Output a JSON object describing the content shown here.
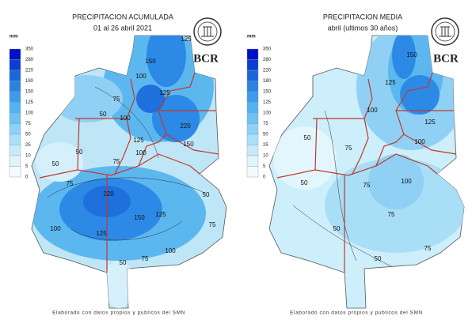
{
  "panels": [
    {
      "title": "PRECIPITACION ACUMULADA",
      "subtitle": "01 al 26 abril 2021",
      "legend": {
        "unit": "mm",
        "labels": [
          "350",
          "280",
          "220",
          "180",
          "150",
          "125",
          "100",
          "75",
          "50",
          "25",
          "10",
          "5",
          "0"
        ]
      },
      "logo": "BCR",
      "contour_labels": [
        "125",
        "150",
        "100",
        "50",
        "75",
        "100",
        "125",
        "220",
        "150",
        "125",
        "100",
        "75",
        "50",
        "50",
        "75",
        "220",
        "150",
        "125",
        "125",
        "100",
        "50",
        "75",
        "100",
        "50",
        "75"
      ],
      "footer": "Elaborado con datos propios y publicos del SMN"
    },
    {
      "title": "PRECIPITACION MEDIA",
      "subtitle": "abril (ultimos 30 años)",
      "legend": {
        "unit": "mm",
        "labels": [
          "350",
          "280",
          "220",
          "180",
          "150",
          "125",
          "100",
          "75",
          "50",
          "25",
          "10",
          "5",
          "0"
        ]
      },
      "logo": "BCR",
      "contour_labels": [
        "150",
        "125",
        "100",
        "75",
        "50",
        "125",
        "100",
        "50",
        "100",
        "75",
        "75",
        "50",
        "50",
        "75"
      ],
      "footer": "Elaborado con datos propios y publicos del SMN"
    }
  ]
}
